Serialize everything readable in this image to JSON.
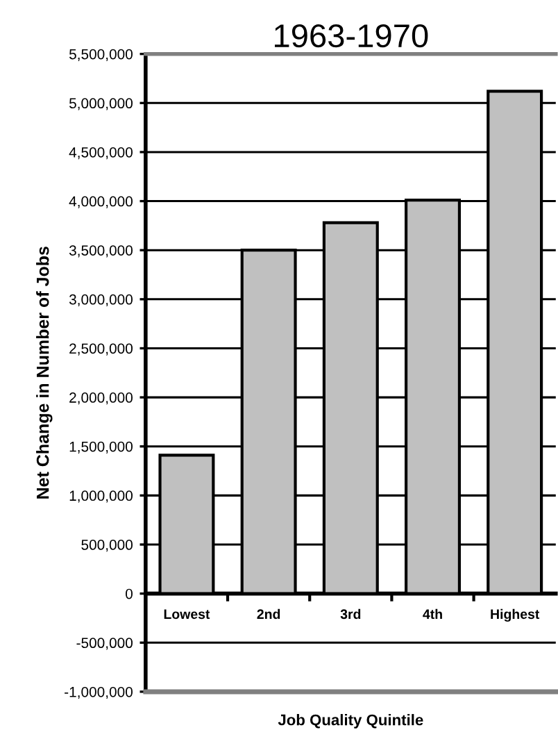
{
  "chart_data": {
    "type": "bar",
    "title": "1963-1970",
    "xlabel": "Job Quality Quintile",
    "ylabel": "Net Change in Number of Jobs",
    "categories": [
      "Lowest",
      "2nd",
      "3rd",
      "4th",
      "Highest"
    ],
    "values": [
      1410000,
      3500000,
      3780000,
      4010000,
      5120000
    ],
    "color": "#c0c0c0",
    "ylim": [
      -1000000,
      5500000
    ],
    "yticks": [
      {
        "value": -1000000,
        "label": "-1,000,000"
      },
      {
        "value": -500000,
        "label": "-500,000"
      },
      0,
      {
        "value": 500000,
        "label": "500,000"
      },
      {
        "value": 1000000,
        "label": "1,000,000"
      },
      {
        "value": 1500000,
        "label": "1,500,000"
      },
      {
        "value": 2000000,
        "label": "2,000,000"
      },
      {
        "value": 2500000,
        "label": "2,500,000"
      },
      {
        "value": 3000000,
        "label": "3,000,000"
      },
      {
        "value": 3500000,
        "label": "3,500,000"
      },
      {
        "value": 4000000,
        "label": "4,000,000"
      },
      {
        "value": 4500000,
        "label": "4,500,000"
      },
      {
        "value": 5000000,
        "label": "5,000,000"
      },
      {
        "value": 5500000,
        "label": "5,500,000"
      }
    ],
    "grid": "y",
    "legend": false
  }
}
